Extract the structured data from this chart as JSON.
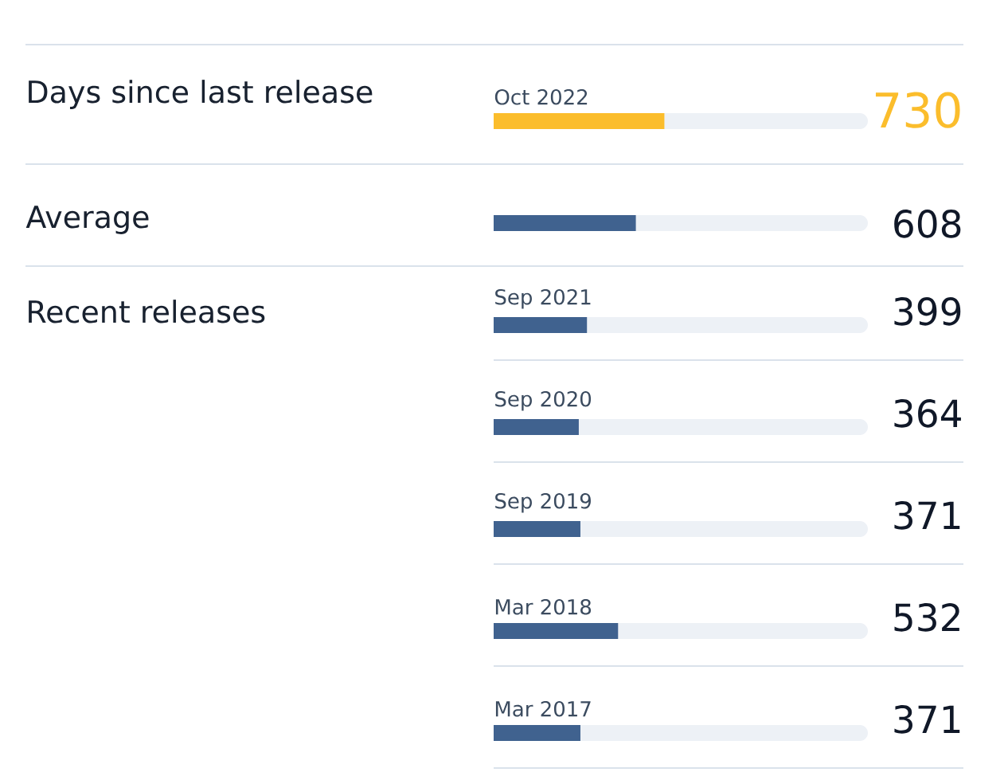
{
  "chart_data": {
    "type": "bar",
    "orientation": "horizontal",
    "categories": [
      "Oct 2022",
      null,
      "Sep 2021",
      "Sep 2020",
      "Sep 2019",
      "Mar 2018",
      "Mar 2017"
    ],
    "values": [
      730,
      608,
      399,
      364,
      371,
      532,
      371
    ],
    "colors": [
      "#fbbd2c",
      "#40628f",
      "#40628f",
      "#40628f",
      "#40628f",
      "#40628f",
      "#40628f"
    ],
    "xlim": [
      0,
      1600
    ],
    "data_labels": true,
    "tick_labels": "y",
    "annotations": [
      "Days since last release",
      "Average",
      "Recent releases"
    ]
  }
}
